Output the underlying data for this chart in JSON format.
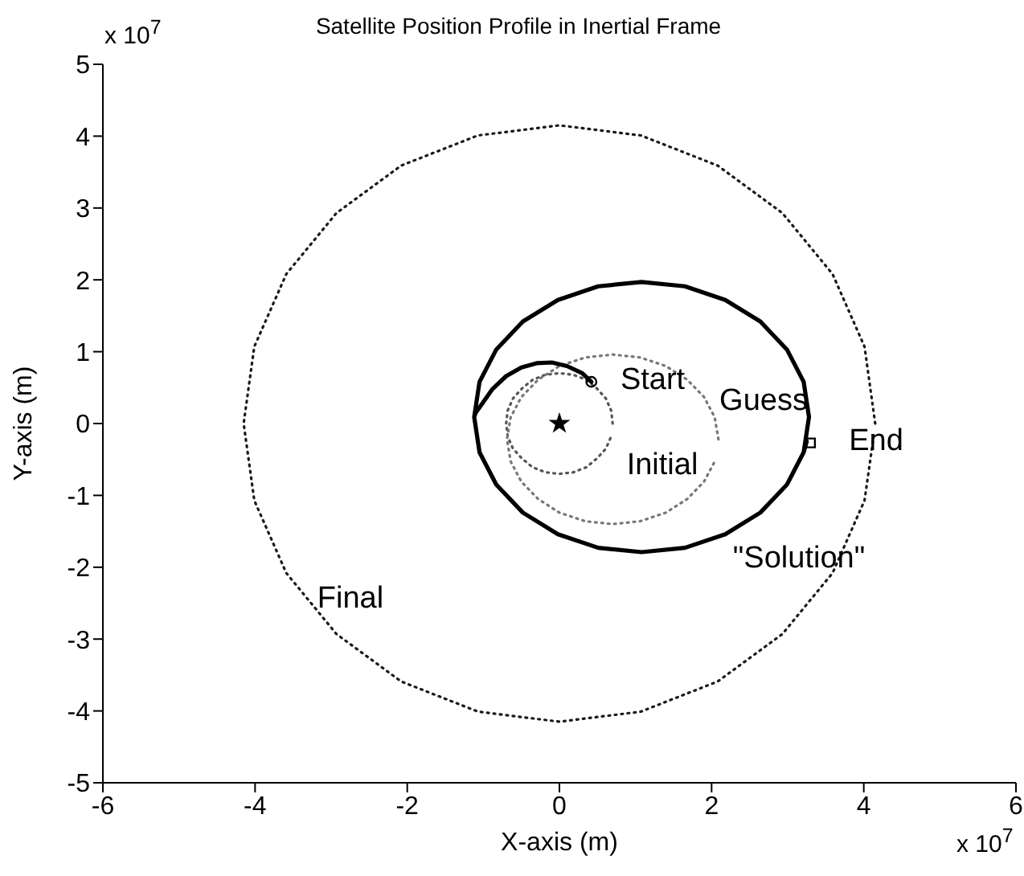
{
  "chart_data": {
    "type": "line",
    "title": "Satellite Position Profile in Inertial Frame",
    "xlabel": "X-axis (m)",
    "ylabel": "Y-axis (m)",
    "xlim": [
      -6,
      6
    ],
    "xticks": [
      -6,
      -4,
      -2,
      0,
      2,
      4,
      6
    ],
    "ylim": [
      -5,
      5
    ],
    "yticks": [
      -5,
      -4,
      -3,
      -2,
      -1,
      0,
      1,
      2,
      3,
      4,
      5
    ],
    "series": [
      {
        "line_style": "dotted",
        "color": "#1a1a1a",
        "x": [
          4.15,
          4.01,
          3.59,
          2.93,
          2.08,
          1.07,
          0,
          -1.07,
          -2.08,
          -2.93,
          -3.59,
          -4.01,
          -4.15,
          -4.01,
          -3.59,
          -2.93,
          -2.08,
          -1.07,
          0,
          1.07,
          2.08,
          2.93,
          3.59,
          4.01,
          4.14
        ],
        "values": [
          0,
          1.07,
          2.08,
          2.93,
          3.59,
          4.01,
          4.15,
          4.01,
          3.59,
          2.93,
          2.08,
          1.07,
          0,
          -1.07,
          -2.08,
          -2.93,
          -3.59,
          -4.01,
          -4.15,
          -4.01,
          -3.59,
          -2.93,
          -2.08,
          -1.07,
          -0.1
        ]
      },
      {
        "line_style": "dotted",
        "color": "#555555",
        "x": [
          0.7,
          0.68,
          0.61,
          0.49,
          0.35,
          0.18,
          0,
          -0.18,
          -0.35,
          -0.49,
          -0.61,
          -0.68,
          -0.7,
          -0.68,
          -0.61,
          -0.49,
          -0.35,
          -0.18,
          0,
          0.18,
          0.35,
          0.49,
          0.61,
          0.68
        ],
        "values": [
          0,
          0.18,
          0.35,
          0.49,
          0.61,
          0.68,
          0.7,
          0.68,
          0.61,
          0.49,
          0.35,
          0.18,
          0,
          -0.18,
          -0.35,
          -0.49,
          -0.61,
          -0.68,
          -0.7,
          -0.68,
          -0.61,
          -0.49,
          -0.35,
          -0.18
        ]
      },
      {
        "line_style": "dotted",
        "color": "#777777",
        "x": [
          2.09,
          2.04,
          1.9,
          1.68,
          1.4,
          1.06,
          0.7,
          0.34,
          0,
          -0.28,
          -0.5,
          -0.64,
          -0.69,
          -0.64,
          -0.5,
          -0.28,
          0,
          0.34,
          0.7,
          1.06,
          1.4,
          1.68,
          1.9,
          2.04
        ],
        "values": [
          -0.22,
          0.09,
          0.37,
          0.61,
          0.8,
          0.92,
          0.96,
          0.92,
          0.8,
          0.61,
          0.37,
          0.09,
          -0.22,
          -0.53,
          -0.81,
          -1.05,
          -1.24,
          -1.36,
          -1.4,
          -1.36,
          -1.24,
          -1.05,
          -0.81,
          -0.53
        ]
      },
      {
        "line_style": "solid",
        "color": "#000000",
        "x": [
          0.42,
          0.3,
          0.1,
          -0.1,
          -0.3,
          -0.5,
          -0.7,
          -0.88,
          -1,
          -1.1,
          -1.12,
          -1.05,
          -0.83,
          -0.48,
          -0.02,
          0.51,
          1.08,
          1.65,
          2.18,
          2.64,
          2.99,
          3.21,
          3.28,
          3.21,
          2.99,
          2.64,
          2.18,
          1.65,
          1.08,
          0.51,
          -0.02,
          -0.48,
          -0.83,
          -1.05,
          -1.12,
          -1.05,
          -0.83,
          -0.48,
          -0.02,
          0.51,
          1.08,
          1.65,
          2.18,
          2.64,
          2.99,
          3.21,
          3.25
        ],
        "values": [
          0.58,
          0.7,
          0.8,
          0.85,
          0.84,
          0.78,
          0.66,
          0.48,
          0.3,
          0.15,
          0.09,
          -0.4,
          -0.85,
          -1.24,
          -1.54,
          -1.73,
          -1.79,
          -1.73,
          -1.54,
          -1.24,
          -0.85,
          -0.4,
          0.09,
          0.58,
          1.03,
          1.42,
          1.72,
          1.91,
          1.97,
          1.91,
          1.72,
          1.42,
          1.03,
          0.58,
          0.09,
          -0.4,
          -0.85,
          -1.24,
          -1.54,
          -1.73,
          -1.79,
          -1.73,
          -1.54,
          -1.24,
          -0.85,
          -0.4,
          -0.25
        ]
      },
      {
        "type": "scatter",
        "marker": "star",
        "color": "#000000",
        "x": [
          0
        ],
        "values": [
          0
        ]
      },
      {
        "type": "scatter",
        "marker": "circle",
        "color": "#000000",
        "x": [
          0.42
        ],
        "values": [
          0.58
        ]
      },
      {
        "type": "scatter",
        "marker": "square",
        "color": "#000000",
        "x": [
          3.3
        ],
        "values": [
          -0.27
        ]
      }
    ],
    "annotations": [
      "x 10$^{7}$",
      "x 10$^{7}$",
      "Start",
      "Guess",
      "Initial",
      "End",
      "\"Solution\"",
      "Final"
    ]
  }
}
